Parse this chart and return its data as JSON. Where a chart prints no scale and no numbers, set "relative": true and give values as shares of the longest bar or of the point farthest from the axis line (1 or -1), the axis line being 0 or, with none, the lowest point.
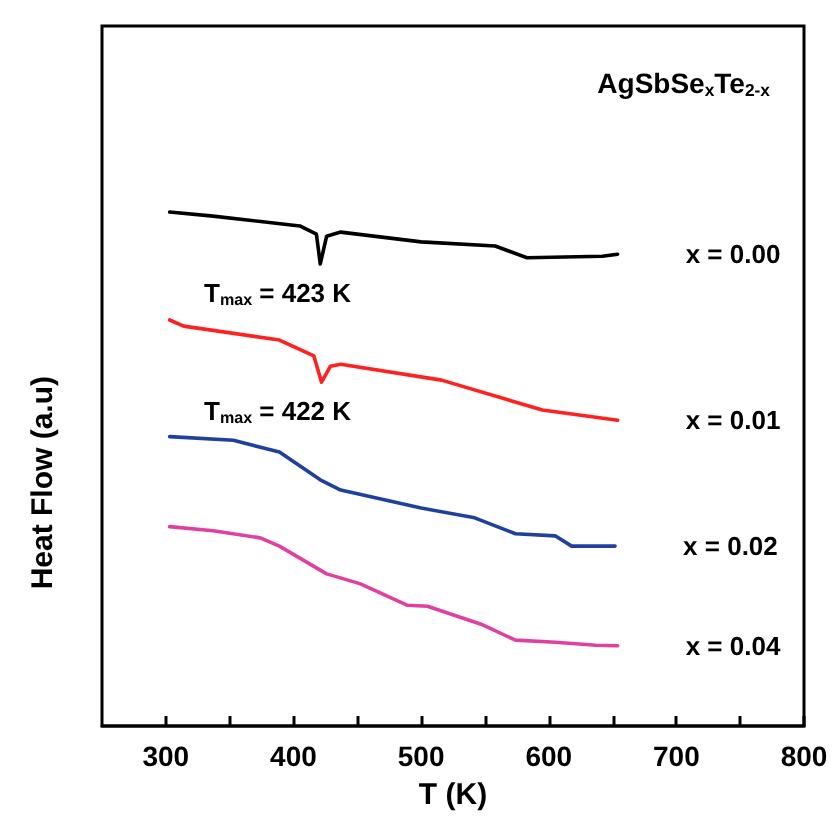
{
  "chart_data": {
    "type": "line",
    "title": "AgSbSe$_{x}$Te$_{2-x}$",
    "xlabel": "T (K)",
    "ylabel": "Heat Flow (a.u)",
    "relative": true,
    "marker": "none",
    "line_style": "solid",
    "annotations": [
      "T$_{max}$ = 423 K",
      "T$_{max}$ = 422 K"
    ],
    "xlim": [
      250,
      800
    ],
    "xticks": [
      300,
      {
        "value": 350,
        "label": null
      },
      400,
      {
        "value": 450,
        "label": null
      },
      500,
      {
        "value": 550,
        "label": null
      },
      600,
      {
        "value": 650,
        "label": null
      },
      700,
      {
        "value": 750,
        "label": null
      },
      800
    ],
    "series": [
      {
        "name": "x = 0.00",
        "color": "#000000",
        "x": [
          303,
          337,
          405,
          418,
          421,
          426,
          437,
          500,
          558,
          583,
          642,
          654
        ],
        "values": [
          1.0,
          0.992,
          0.973,
          0.957,
          0.899,
          0.953,
          0.961,
          0.942,
          0.934,
          0.911,
          0.914,
          0.918
        ]
      },
      {
        "name": "x = 0.01",
        "color": "#ff2020",
        "x": [
          303,
          314,
          389,
          416,
          422,
          429,
          437,
          516,
          595,
          654
        ],
        "values": [
          0.79,
          0.778,
          0.751,
          0.72,
          0.669,
          0.7,
          0.704,
          0.673,
          0.615,
          0.595
        ]
      },
      {
        "name": "x = 0.02",
        "color": "#2040a0",
        "x": [
          303,
          353,
          389,
          421,
          437,
          500,
          542,
          574,
          605,
          618,
          652
        ],
        "values": [
          0.563,
          0.556,
          0.533,
          0.479,
          0.459,
          0.424,
          0.405,
          0.374,
          0.37,
          0.35,
          0.35
        ]
      },
      {
        "name": "x = 0.04",
        "color": "#e040a0",
        "x": [
          303,
          337,
          374,
          389,
          426,
          452,
          489,
          505,
          547,
          574,
          605,
          637,
          654
        ],
        "values": [
          0.388,
          0.38,
          0.366,
          0.35,
          0.296,
          0.277,
          0.235,
          0.233,
          0.198,
          0.167,
          0.163,
          0.157,
          0.156
        ]
      }
    ]
  }
}
